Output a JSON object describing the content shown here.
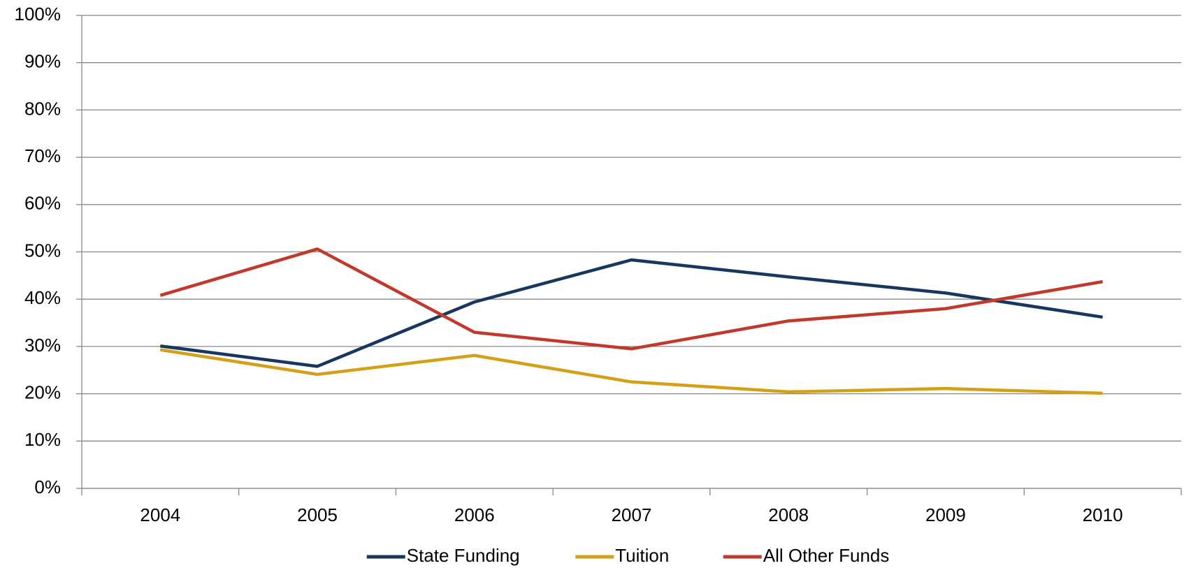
{
  "chart_data": {
    "type": "line",
    "categories": [
      "2004",
      "2005",
      "2006",
      "2007",
      "2008",
      "2009",
      "2010"
    ],
    "series": [
      {
        "name": "State Funding",
        "color": "#17375e",
        "values": [
          30.1,
          25.8,
          39.4,
          48.3,
          44.7,
          41.3,
          36.2
        ]
      },
      {
        "name": "Tuition",
        "color": "#d4a017",
        "values": [
          29.3,
          24.1,
          28.1,
          22.5,
          20.4,
          21.1,
          20.1
        ]
      },
      {
        "name": "All Other Funds",
        "color": "#c0392b",
        "values": [
          40.8,
          50.6,
          33.0,
          29.5,
          35.4,
          38.0,
          43.7
        ]
      }
    ],
    "ylim": [
      0,
      100
    ],
    "yticks": [
      {
        "value": 0,
        "label": "0%"
      },
      {
        "value": 10,
        "label": "10%"
      },
      {
        "value": 20,
        "label": "20%"
      },
      {
        "value": 30,
        "label": "30%"
      },
      {
        "value": 40,
        "label": "40%"
      },
      {
        "value": 50,
        "label": "50%"
      },
      {
        "value": 60,
        "label": "60%"
      },
      {
        "value": 70,
        "label": "70%"
      },
      {
        "value": 80,
        "label": "80%"
      },
      {
        "value": 90,
        "label": "90%"
      },
      {
        "value": 100,
        "label": "100%"
      }
    ],
    "grid": true,
    "legend": "bottom"
  }
}
